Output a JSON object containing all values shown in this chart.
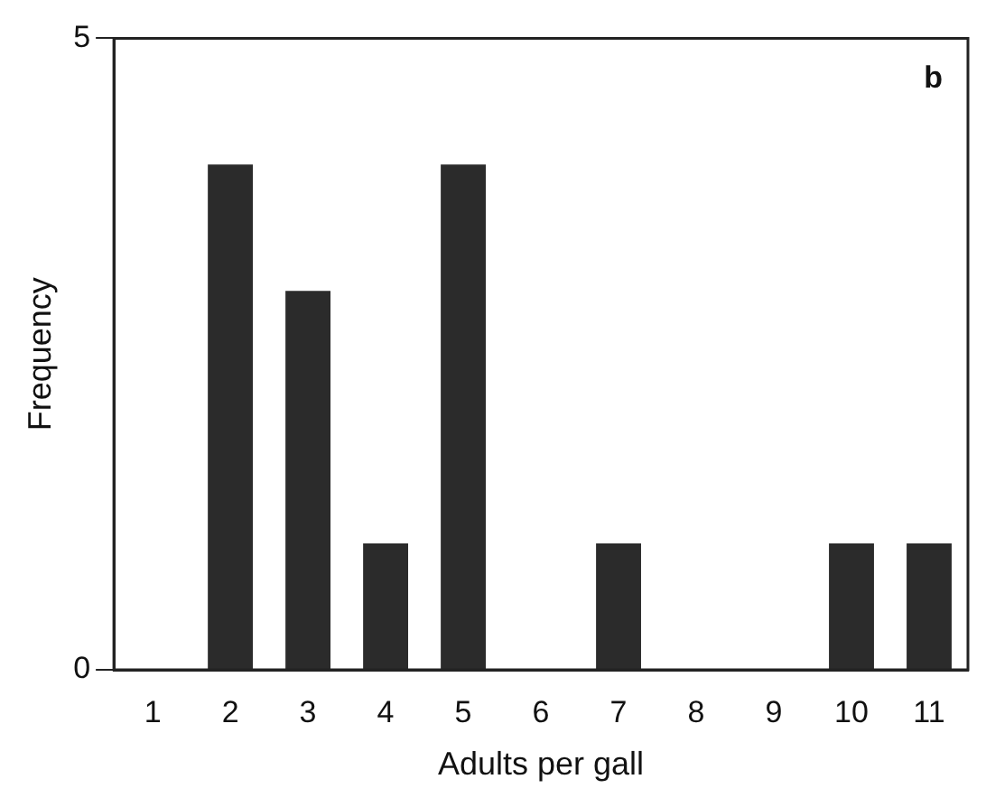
{
  "chart_data": {
    "type": "bar",
    "xlabel": "Adults per gall",
    "ylabel": "Frequency",
    "categories": [
      "1",
      "2",
      "3",
      "4",
      "5",
      "6",
      "7",
      "8",
      "9",
      "10",
      "11"
    ],
    "values": [
      0,
      4,
      3,
      1,
      4,
      0,
      1,
      0,
      0,
      1,
      1
    ],
    "color": "#2b2b2b",
    "ylim": [
      0,
      5
    ],
    "yticks": [
      0,
      5
    ],
    "grid": false,
    "legend": false,
    "annotations": [
      "b"
    ]
  }
}
